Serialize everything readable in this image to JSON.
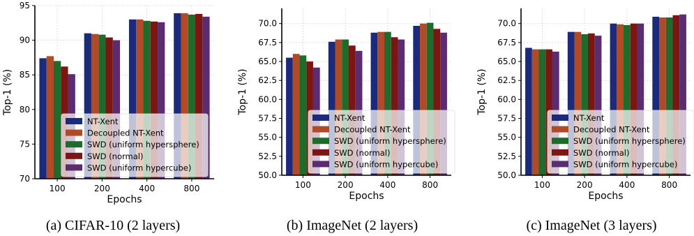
{
  "series_colors": [
    "#1b2a7a",
    "#b04a27",
    "#1e6b2c",
    "#7c1613",
    "#5b2c6f"
  ],
  "chart_data": [
    {
      "type": "bar",
      "caption": "(a) CIFAR-10 (2 layers)",
      "xlabel": "Epochs",
      "ylabel": "Top-1 (%)",
      "ylim": [
        70,
        95
      ],
      "yticks": [
        "70",
        "75",
        "80",
        "85",
        "90",
        "95"
      ],
      "categories": [
        "100",
        "200",
        "400",
        "800"
      ],
      "grid": true,
      "legend_position": "bottom-right",
      "series": [
        {
          "name": "NT-Xent",
          "values": [
            87.4,
            91.0,
            93.0,
            93.9
          ]
        },
        {
          "name": "Decoupled NT-Xent",
          "values": [
            87.7,
            90.9,
            93.0,
            93.9
          ]
        },
        {
          "name": "SWD (uniform hypersphere)",
          "values": [
            87.0,
            90.8,
            92.8,
            93.7
          ]
        },
        {
          "name": "SWD (normal)",
          "values": [
            86.2,
            90.4,
            92.7,
            93.8
          ]
        },
        {
          "name": "SWD (uniform hypercube)",
          "values": [
            85.1,
            90.0,
            92.6,
            93.4
          ]
        }
      ]
    },
    {
      "type": "bar",
      "caption": "(b) ImageNet (2 layers)",
      "xlabel": "Epochs",
      "ylabel": "Top-1 (%)",
      "ylim": [
        50,
        72
      ],
      "yticks": [
        "50.0",
        "52.5",
        "55.0",
        "57.5",
        "60.0",
        "62.5",
        "65.0",
        "67.5",
        "70.0"
      ],
      "categories": [
        "100",
        "200",
        "400",
        "800"
      ],
      "grid": true,
      "legend_position": "bottom-right",
      "series": [
        {
          "name": "NT-Xent",
          "values": [
            65.5,
            67.6,
            68.8,
            69.7
          ]
        },
        {
          "name": "Decoupled NT-Xent",
          "values": [
            66.0,
            67.9,
            68.9,
            70.0
          ]
        },
        {
          "name": "SWD (uniform hypersphere)",
          "values": [
            65.8,
            67.9,
            68.9,
            70.1
          ]
        },
        {
          "name": "SWD (normal)",
          "values": [
            65.0,
            67.1,
            68.2,
            69.3
          ]
        },
        {
          "name": "SWD (uniform hypercube)",
          "values": [
            64.2,
            66.4,
            67.9,
            68.8
          ]
        }
      ]
    },
    {
      "type": "bar",
      "caption": "(c) ImageNet (3 layers)",
      "xlabel": "Epochs",
      "ylabel": "Top-1 (%)",
      "ylim": [
        50,
        72
      ],
      "yticks": [
        "50.0",
        "52.5",
        "55.0",
        "57.5",
        "60.0",
        "62.5",
        "65.0",
        "67.5",
        "70.0"
      ],
      "categories": [
        "100",
        "200",
        "400",
        "800"
      ],
      "grid": true,
      "legend_position": "bottom-right",
      "series": [
        {
          "name": "NT-Xent",
          "values": [
            66.8,
            68.9,
            70.0,
            70.9
          ]
        },
        {
          "name": "Decoupled NT-Xent",
          "values": [
            66.6,
            68.9,
            69.9,
            70.8
          ]
        },
        {
          "name": "SWD (uniform hypersphere)",
          "values": [
            66.6,
            68.6,
            69.8,
            70.8
          ]
        },
        {
          "name": "SWD (normal)",
          "values": [
            66.6,
            68.7,
            70.0,
            71.1
          ]
        },
        {
          "name": "SWD (uniform hypercube)",
          "values": [
            66.3,
            68.4,
            70.0,
            71.2
          ]
        }
      ]
    }
  ]
}
